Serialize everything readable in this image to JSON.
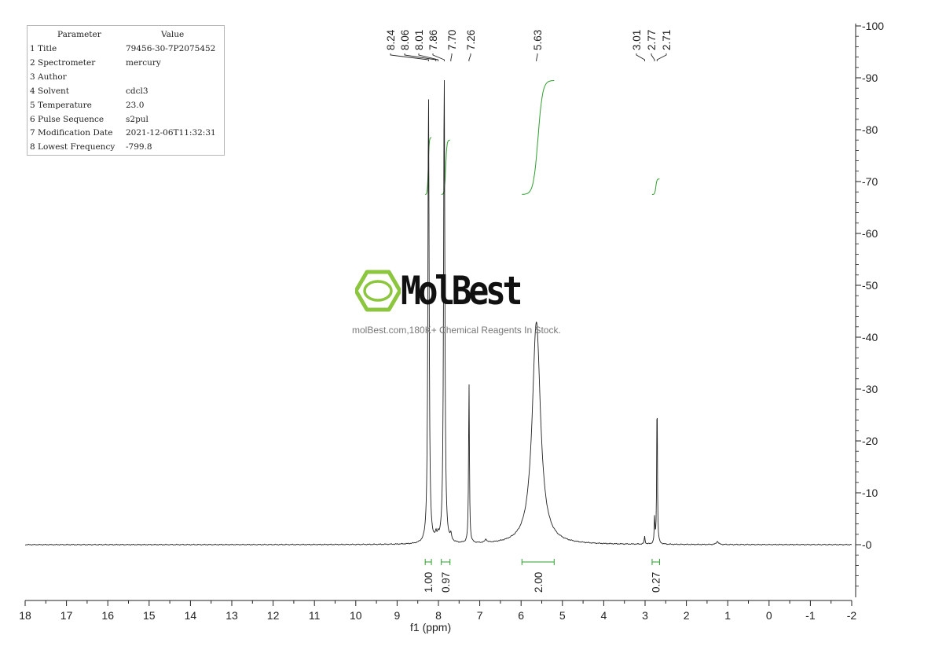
{
  "params": {
    "header": [
      "Parameter",
      "Value"
    ],
    "rows": [
      {
        "label": "1 Title",
        "value": "79456-30-7P2075452"
      },
      {
        "label": "2 Spectrometer",
        "value": "mercury"
      },
      {
        "label": "3 Author",
        "value": ""
      },
      {
        "label": "4 Solvent",
        "value": "cdcl3"
      },
      {
        "label": "5 Temperature",
        "value": "23.0"
      },
      {
        "label": "6 Pulse Sequence",
        "value": "s2pul"
      },
      {
        "label": "7 Modification Date",
        "value": "2021-12-06T11:32:31"
      },
      {
        "label": "8 Lowest Frequency",
        "value": "-799.8"
      }
    ]
  },
  "watermark": {
    "brand": "MolBest",
    "tagline": "molBest.com,180K+ Chemical Reagents In Stock.",
    "logo_icon": "benzene-hexagon-icon",
    "color": "#8cc63f"
  },
  "chart_data": {
    "type": "line",
    "xlabel": "f1 (ppm)",
    "xlim": [
      18,
      -2
    ],
    "ylim": [
      -10,
      100
    ],
    "x_ticks": [
      "18",
      "17",
      "16",
      "15",
      "14",
      "13",
      "12",
      "11",
      "10",
      "9",
      "8",
      "7",
      "6",
      "5",
      "4",
      "3",
      "2",
      "1",
      "0",
      "-1",
      "-2"
    ],
    "y_ticks": [
      "100",
      "90",
      "80",
      "70",
      "60",
      "50",
      "40",
      "30",
      "20",
      "10",
      "0"
    ],
    "peak_labels": [
      "8.24",
      "8.06",
      "8.01",
      "7.86",
      "7.70",
      "7.26",
      "5.63",
      "3.01",
      "2.77",
      "2.71"
    ],
    "peaks": [
      {
        "ppm": 8.24,
        "height": 87,
        "width": 0.018
      },
      {
        "ppm": 8.06,
        "height": 1.2,
        "width": 0.02
      },
      {
        "ppm": 8.01,
        "height": 1.0,
        "width": 0.02
      },
      {
        "ppm": 7.86,
        "height": 91,
        "width": 0.018
      },
      {
        "ppm": 7.7,
        "height": 1.2,
        "width": 0.02
      },
      {
        "ppm": 7.26,
        "height": 31,
        "width": 0.012
      },
      {
        "ppm": 6.85,
        "height": 0.6,
        "width": 0.03
      },
      {
        "ppm": 5.63,
        "height": 43,
        "width": 0.12
      },
      {
        "ppm": 3.01,
        "height": 1.5,
        "width": 0.012
      },
      {
        "ppm": 2.77,
        "height": 5,
        "width": 0.01
      },
      {
        "ppm": 2.71,
        "height": 29.5,
        "width": 0.01
      },
      {
        "ppm": 1.25,
        "height": 0.6,
        "width": 0.03
      }
    ],
    "integrals": [
      {
        "label": "1.00",
        "from": 8.32,
        "to": 8.17,
        "y0": 67.5,
        "y1": 78.5
      },
      {
        "label": "0.97",
        "from": 7.93,
        "to": 7.72,
        "y0": 67.5,
        "y1": 78.0
      },
      {
        "label": "2.00",
        "from": 5.98,
        "to": 5.2,
        "y0": 67.5,
        "y1": 89.5
      },
      {
        "label": "0.27",
        "from": 2.83,
        "to": 2.65,
        "y0": 67.5,
        "y1": 70.5
      }
    ],
    "line_color": "#222222",
    "integral_color": "#2e9e2e"
  }
}
